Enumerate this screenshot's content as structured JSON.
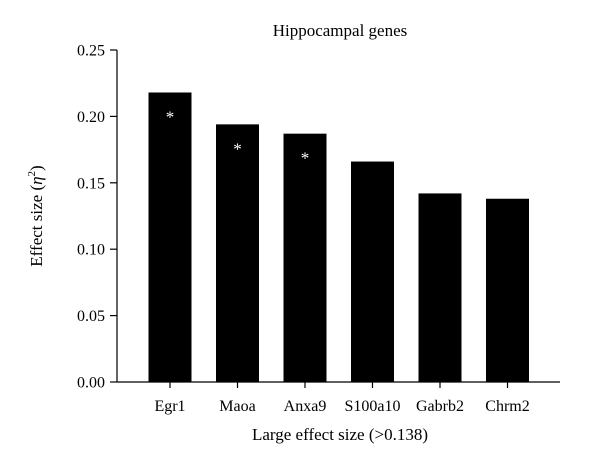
{
  "chart_data": {
    "type": "bar",
    "title": "Hippocampal genes",
    "xlabel": "Large effect size (>0.138)",
    "ylabel_prefix": "Effect size (",
    "ylabel_symbol": "η",
    "ylabel_superscript": "2",
    "ylabel_suffix": ")",
    "ylim": [
      0,
      0.25
    ],
    "yticks": [
      "0.00",
      "0.05",
      "0.10",
      "0.15",
      "0.20",
      "0.25"
    ],
    "ytick_values": [
      0,
      0.05,
      0.1,
      0.15,
      0.2,
      0.25
    ],
    "categories": [
      "Egr1",
      "Maoa",
      "Anxa9",
      "S100a10",
      "Gabrb2",
      "Chrm2"
    ],
    "values": [
      0.218,
      0.194,
      0.187,
      0.166,
      0.142,
      0.138
    ],
    "annotations": [
      "*",
      "*",
      "*",
      "",
      "",
      ""
    ],
    "bar_color": "#000000",
    "annotation_color": "#ffffff",
    "grid": false
  }
}
